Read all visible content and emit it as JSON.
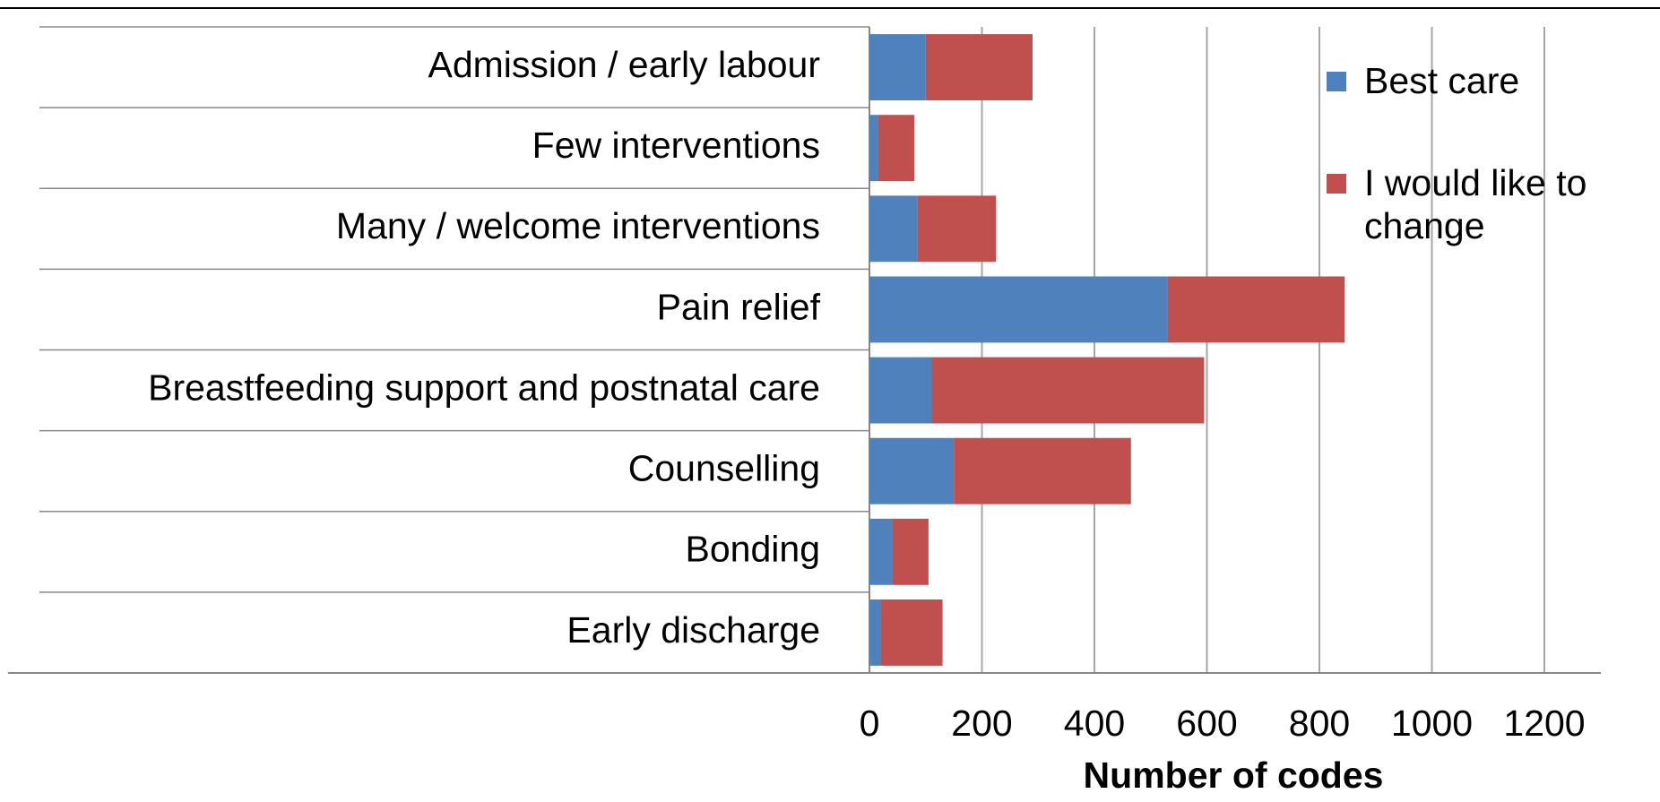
{
  "chart_data": {
    "type": "bar",
    "orientation": "horizontal",
    "stacked": true,
    "categories": [
      "Admission / early labour",
      "Few interventions",
      "Many / welcome interventions",
      "Pain relief",
      "Breastfeeding support and postnatal care",
      "Counselling",
      "Bonding",
      "Early discharge"
    ],
    "series": [
      {
        "name": "Best care",
        "color": "#4f81bd",
        "values": [
          100,
          15,
          85,
          530,
          110,
          150,
          40,
          20
        ]
      },
      {
        "name": "I would like to change",
        "color": "#c0504d",
        "values": [
          190,
          65,
          140,
          315,
          485,
          315,
          65,
          110
        ]
      }
    ],
    "xlabel": "Number of codes",
    "xlim": [
      0,
      1200
    ],
    "xticks": [
      0,
      200,
      400,
      600,
      800,
      1000,
      1200
    ],
    "grid": true,
    "legend": "upper right"
  }
}
